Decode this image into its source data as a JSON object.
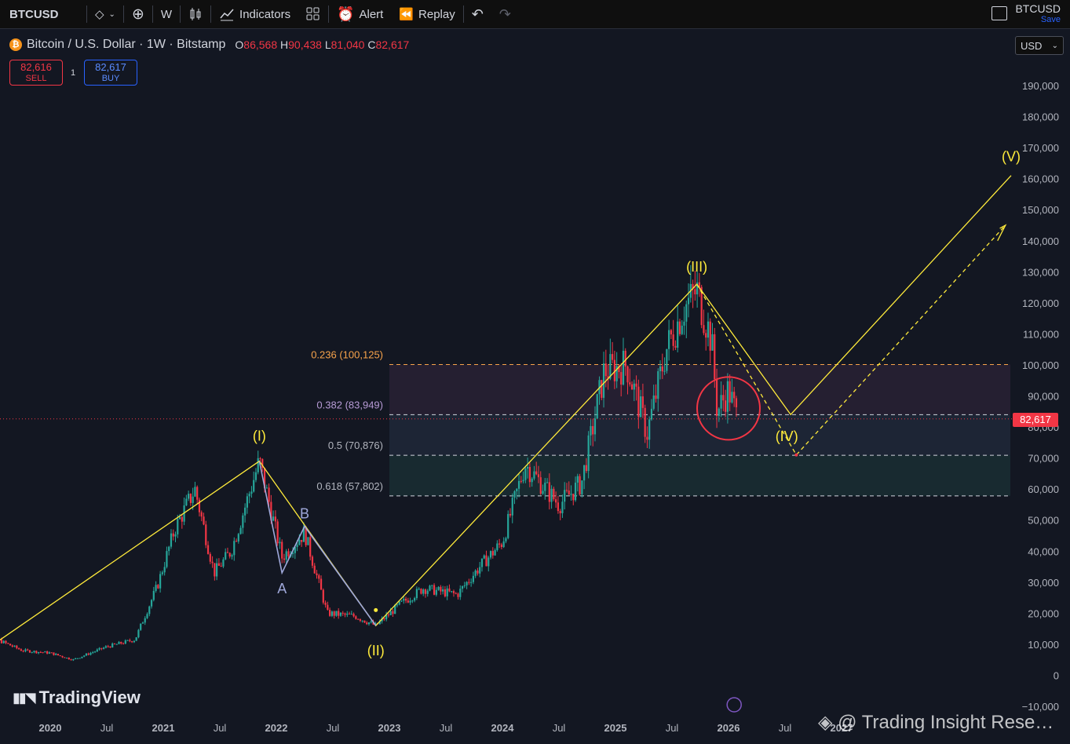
{
  "toolbar": {
    "symbol": "BTCUSD",
    "interval": "W",
    "indicators_label": "Indicators",
    "alert_label": "Alert",
    "replay_label": "Replay",
    "layout_name": "BTCUSD",
    "save_label": "Save"
  },
  "legend": {
    "title": "Bitcoin / U.S. Dollar · 1W · Bitstamp",
    "o_key": "O",
    "o_val": "86,568",
    "h_key": "H",
    "h_val": "90,438",
    "l_key": "L",
    "l_val": "81,040",
    "c_key": "C",
    "c_val": "82,617"
  },
  "trade": {
    "sell_price": "82,616",
    "sell_label": "SELL",
    "buy_price": "82,617",
    "buy_label": "BUY",
    "quantity": "1"
  },
  "currency": "USD",
  "last_price": "82,617",
  "brand": "TradingView",
  "watermark": "@ Trading Insight Rese…",
  "colors": {
    "background": "#131722",
    "up": "#26a69a",
    "down": "#f23645",
    "wave": "#ffeb3b",
    "fib_label": "#f7a34b"
  },
  "chart_data": {
    "type": "candlestick",
    "y_axis": {
      "min": -10000,
      "max": 190000,
      "step": 10000
    },
    "y_ticks": [
      "190,000",
      "180,000",
      "170,000",
      "160,000",
      "150,000",
      "140,000",
      "130,000",
      "120,000",
      "110,000",
      "100,000",
      "90,000",
      "80,000",
      "70,000",
      "60,000",
      "50,000",
      "40,000",
      "30,000",
      "20,000",
      "10,000",
      "0",
      "−10,000"
    ],
    "x_ticks": [
      "Jul",
      "2020",
      "Jul",
      "2021",
      "Jul",
      "2022",
      "Jul",
      "2023",
      "Jul",
      "2024",
      "Jul",
      "2025",
      "Jul",
      "2026",
      "Jul",
      "2027"
    ],
    "fib_levels": [
      {
        "label": "0.236 (100,125)",
        "value": 100125
      },
      {
        "label": "0.382 (83,949)",
        "value": 83949
      },
      {
        "label": "0.5 (70,876)",
        "value": 70876
      },
      {
        "label": "0.618 (57,802)",
        "value": 57802
      }
    ],
    "wave_labels": [
      {
        "label": "(I)",
        "date": "2021.85",
        "price": 69000
      },
      {
        "label": "(II)",
        "date": "2022.88",
        "price": 15500
      },
      {
        "label": "(III)",
        "date": "2025.72",
        "price": 126000
      },
      {
        "label": "(IV)",
        "date": "2026.55",
        "price": 84000
      },
      {
        "label": "(V)",
        "date": "2028.5",
        "price": 161000
      },
      {
        "label": "A",
        "date": "2022.05",
        "price": 33000
      },
      {
        "label": "B",
        "date": "2022.25",
        "price": 48000
      }
    ],
    "price_path": [
      [
        2019.3,
        4000
      ],
      [
        2019.5,
        12000
      ],
      [
        2019.75,
        8000
      ],
      [
        2020.0,
        7200
      ],
      [
        2020.2,
        5000
      ],
      [
        2020.5,
        9200
      ],
      [
        2020.75,
        11500
      ],
      [
        2020.95,
        29000
      ],
      [
        2021.1,
        47000
      ],
      [
        2021.28,
        60000
      ],
      [
        2021.45,
        33000
      ],
      [
        2021.6,
        40000
      ],
      [
        2021.85,
        69000
      ],
      [
        2022.05,
        38000
      ],
      [
        2022.25,
        46000
      ],
      [
        2022.45,
        20000
      ],
      [
        2022.7,
        19000
      ],
      [
        2022.88,
        16000
      ],
      [
        2023.1,
        23000
      ],
      [
        2023.3,
        28000
      ],
      [
        2023.6,
        26000
      ],
      [
        2023.8,
        35000
      ],
      [
        2024.0,
        43000
      ],
      [
        2024.2,
        68000
      ],
      [
        2024.5,
        55000
      ],
      [
        2024.7,
        62000
      ],
      [
        2024.9,
        98000
      ],
      [
        2025.1,
        100000
      ],
      [
        2025.28,
        78000
      ],
      [
        2025.45,
        105000
      ],
      [
        2025.6,
        118000
      ],
      [
        2025.72,
        124000
      ],
      [
        2025.85,
        108000
      ],
      [
        2025.9,
        85000
      ],
      [
        2026.0,
        92000
      ],
      [
        2026.08,
        82617
      ]
    ]
  }
}
